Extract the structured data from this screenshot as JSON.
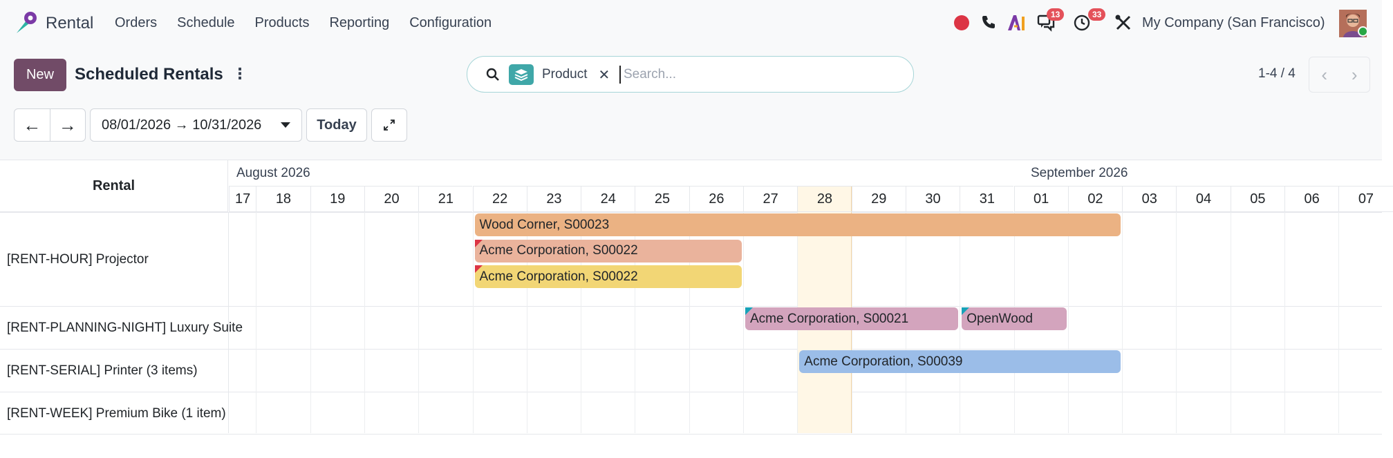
{
  "nav": {
    "app_name": "Rental",
    "menu": [
      "Orders",
      "Schedule",
      "Products",
      "Reporting",
      "Configuration"
    ],
    "chat_badge": "13",
    "activity_badge": "33",
    "company": "My Company (San Francisco)"
  },
  "control": {
    "new_label": "New",
    "title": "Scheduled Rentals",
    "facet_label": "Product",
    "search_placeholder": "Search...",
    "pager": "1-4 / 4",
    "date_range": "08/01/2026 → 10/31/2026",
    "today_label": "Today"
  },
  "gantt": {
    "row_header": "Rental",
    "months": [
      "August 2026",
      "September 2026"
    ],
    "days": [
      "17",
      "18",
      "19",
      "20",
      "21",
      "22",
      "23",
      "24",
      "25",
      "26",
      "27",
      "28",
      "29",
      "30",
      "31",
      "01",
      "02",
      "03",
      "04",
      "05",
      "06",
      "07"
    ],
    "today": "28",
    "rows": [
      "[RENT-HOUR] Projector",
      "[RENT-PLANNING-NIGHT] Luxury Suite",
      "[RENT-SERIAL] Printer (3 items)",
      "[RENT-WEEK] Premium Bike (1 item)"
    ],
    "pills": [
      {
        "label": "Wood Corner, S00023",
        "color": "#ebb283",
        "row": 0,
        "lane": 0,
        "start": "22",
        "end": "02"
      },
      {
        "label": "Acme Corporation, S00022",
        "color": "#eab39c",
        "row": 0,
        "lane": 1,
        "start": "22",
        "end": "26",
        "flag": "red"
      },
      {
        "label": "Acme Corporation, S00022",
        "color": "#f2d675",
        "row": 0,
        "lane": 2,
        "start": "22",
        "end": "26",
        "flag": "red"
      },
      {
        "label": "Acme Corporation, S00021",
        "color": "#d3a4bd",
        "row": 1,
        "lane": 0,
        "start": "27",
        "end": "30",
        "flag": "teal",
        "striped": true
      },
      {
        "label": "OpenWood",
        "color": "#d3a4bd",
        "row": 1,
        "lane": 0,
        "start": "31",
        "end": "01",
        "flag": "teal",
        "striped": true
      },
      {
        "label": "Acme Corporation, S00039",
        "color": "#9bbde8",
        "row": 2,
        "lane": 0,
        "start": "28",
        "end": "02"
      }
    ]
  }
}
